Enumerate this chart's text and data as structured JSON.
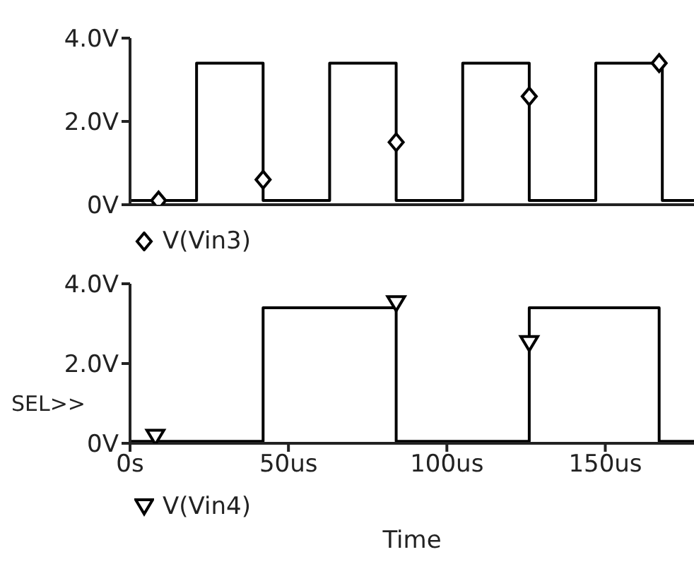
{
  "chart_data": [
    {
      "type": "line",
      "legend": "bottom",
      "tick_labels": "y",
      "xlim": [
        0,
        178
      ],
      "ylim": [
        0,
        4
      ],
      "yticks": [
        {
          "value": 0,
          "label": "0V"
        },
        {
          "value": 2,
          "label": "2.0V"
        },
        {
          "value": 4,
          "label": "4.0V"
        }
      ],
      "series": [
        {
          "name": "V(Vin3)",
          "color": "#000000",
          "marker": "none",
          "x": [
            0,
            21,
            21,
            42,
            42,
            63,
            63,
            84,
            84,
            105,
            105,
            126,
            126,
            147,
            147,
            168,
            168,
            178
          ],
          "values": [
            0.1,
            0.1,
            3.4,
            3.4,
            0.1,
            0.1,
            3.4,
            3.4,
            0.1,
            0.1,
            3.4,
            3.4,
            0.1,
            0.1,
            3.4,
            3.4,
            0.1,
            0.1
          ]
        },
        {
          "type": "scatter",
          "color": "#000000",
          "marker": "diamond",
          "x": [
            9,
            42,
            84,
            126,
            167
          ],
          "values": [
            0.1,
            0.6,
            1.5,
            2.6,
            3.4
          ]
        }
      ]
    },
    {
      "type": "line",
      "legend": "bottom",
      "xlabel": "Time",
      "annotations": [
        "SEL>>"
      ],
      "xlim": [
        0,
        178
      ],
      "xticks": [
        {
          "value": 0,
          "label": "0s"
        },
        {
          "value": 50,
          "label": "50us"
        },
        {
          "value": 100,
          "label": "100us"
        },
        {
          "value": 150,
          "label": "150us"
        }
      ],
      "ylim": [
        0,
        4
      ],
      "yticks": [
        {
          "value": 0,
          "label": "0V"
        },
        {
          "value": 2,
          "label": "2.0V"
        },
        {
          "value": 4,
          "label": "4.0V"
        }
      ],
      "series": [
        {
          "name": "V(Vin4)",
          "color": "#000000",
          "marker": "none",
          "x": [
            0,
            42,
            42,
            84,
            84,
            126,
            126,
            167,
            167,
            178
          ],
          "values": [
            0.05,
            0.05,
            3.4,
            3.4,
            0.05,
            0.05,
            3.4,
            3.4,
            0.05,
            0.05
          ]
        },
        {
          "type": "scatter",
          "color": "#000000",
          "marker": "triangle",
          "x": [
            8,
            84,
            126
          ],
          "values": [
            0.15,
            3.5,
            2.5
          ]
        }
      ]
    }
  ]
}
